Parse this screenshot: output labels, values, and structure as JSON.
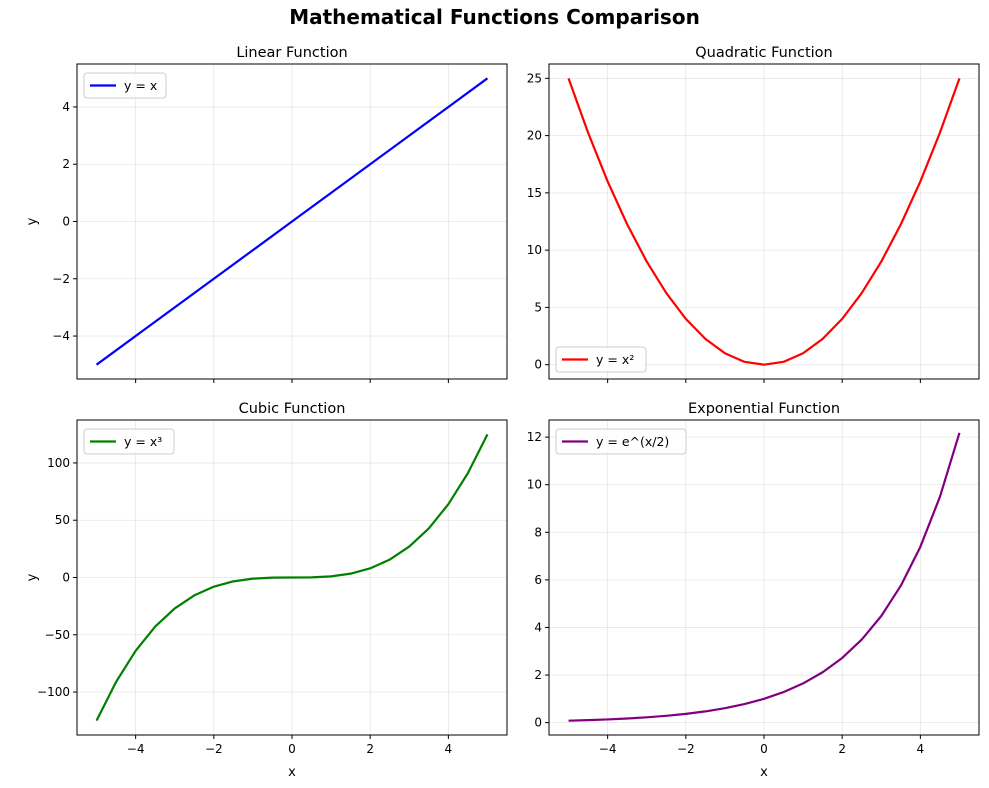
{
  "figure": {
    "title": "Mathematical Functions Comparison"
  },
  "chart_data": [
    {
      "type": "line",
      "title": "Linear Function",
      "xlabel": "",
      "ylabel": "y",
      "xlim": [
        -5.5,
        5.5
      ],
      "ylim": [
        -5.5,
        5.5
      ],
      "xticks": [
        -4,
        -2,
        0,
        2,
        4
      ],
      "xtick_labels": [
        "",
        "",
        "",
        "",
        ""
      ],
      "yticks": [
        -4,
        -2,
        0,
        2,
        4
      ],
      "ytick_labels": [
        "−4",
        "−2",
        "0",
        "2",
        "4"
      ],
      "grid": true,
      "legend_position": "top-left",
      "series": [
        {
          "name": "y = x",
          "color": "#0000ff",
          "x": [
            -5,
            -4,
            -3,
            -2,
            -1,
            0,
            1,
            2,
            3,
            4,
            5
          ],
          "y": [
            -5,
            -4,
            -3,
            -2,
            -1,
            0,
            1,
            2,
            3,
            4,
            5
          ]
        }
      ]
    },
    {
      "type": "line",
      "title": "Quadratic Function",
      "xlabel": "",
      "ylabel": "",
      "xlim": [
        -5.5,
        5.5
      ],
      "ylim": [
        -1.25,
        26.25
      ],
      "xticks": [
        -4,
        -2,
        0,
        2,
        4
      ],
      "xtick_labels": [
        "",
        "",
        "",
        "",
        ""
      ],
      "yticks": [
        0,
        5,
        10,
        15,
        20,
        25
      ],
      "ytick_labels": [
        "0",
        "5",
        "10",
        "15",
        "20",
        "25"
      ],
      "grid": true,
      "legend_position": "bottom-left",
      "series": [
        {
          "name": "y = x²",
          "color": "#ff0000",
          "x": [
            -5,
            -4.5,
            -4,
            -3.5,
            -3,
            -2.5,
            -2,
            -1.5,
            -1,
            -0.5,
            0,
            0.5,
            1,
            1.5,
            2,
            2.5,
            3,
            3.5,
            4,
            4.5,
            5
          ],
          "y": [
            25,
            20.25,
            16,
            12.25,
            9,
            6.25,
            4,
            2.25,
            1,
            0.25,
            0,
            0.25,
            1,
            2.25,
            4,
            6.25,
            9,
            12.25,
            16,
            20.25,
            25
          ]
        }
      ]
    },
    {
      "type": "line",
      "title": "Cubic Function",
      "xlabel": "x",
      "ylabel": "y",
      "xlim": [
        -5.5,
        5.5
      ],
      "ylim": [
        -137.5,
        137.5
      ],
      "xticks": [
        -4,
        -2,
        0,
        2,
        4
      ],
      "xtick_labels": [
        "−4",
        "−2",
        "0",
        "2",
        "4"
      ],
      "yticks": [
        -100,
        -50,
        0,
        50,
        100
      ],
      "ytick_labels": [
        "−100",
        "−50",
        "0",
        "50",
        "100"
      ],
      "grid": true,
      "legend_position": "top-left",
      "series": [
        {
          "name": "y = x³",
          "color": "#008000",
          "x": [
            -5,
            -4.5,
            -4,
            -3.5,
            -3,
            -2.5,
            -2,
            -1.5,
            -1,
            -0.5,
            0,
            0.5,
            1,
            1.5,
            2,
            2.5,
            3,
            3.5,
            4,
            4.5,
            5
          ],
          "y": [
            -125,
            -91.125,
            -64,
            -42.875,
            -27,
            -15.625,
            -8,
            -3.375,
            -1,
            -0.125,
            0,
            0.125,
            1,
            3.375,
            8,
            15.625,
            27,
            42.875,
            64,
            91.125,
            125
          ]
        }
      ]
    },
    {
      "type": "line",
      "title": "Exponential Function",
      "xlabel": "x",
      "ylabel": "",
      "xlim": [
        -5.5,
        5.5
      ],
      "ylim": [
        -0.52,
        12.72
      ],
      "xticks": [
        -4,
        -2,
        0,
        2,
        4
      ],
      "xtick_labels": [
        "−4",
        "−2",
        "0",
        "2",
        "4"
      ],
      "yticks": [
        0,
        2,
        4,
        6,
        8,
        10,
        12
      ],
      "ytick_labels": [
        "0",
        "2",
        "4",
        "6",
        "8",
        "10",
        "12"
      ],
      "grid": true,
      "legend_position": "top-left",
      "series": [
        {
          "name": "y = e^(x/2)",
          "color": "#800080",
          "x": [
            -5,
            -4.5,
            -4,
            -3.5,
            -3,
            -2.5,
            -2,
            -1.5,
            -1,
            -0.5,
            0,
            0.5,
            1,
            1.5,
            2,
            2.5,
            3,
            3.5,
            4,
            4.5,
            5
          ],
          "y": [
            0.082,
            0.105,
            0.135,
            0.174,
            0.223,
            0.287,
            0.368,
            0.472,
            0.607,
            0.779,
            1.0,
            1.284,
            1.649,
            2.117,
            2.718,
            3.49,
            4.482,
            5.755,
            7.389,
            9.488,
            12.182
          ]
        }
      ]
    }
  ]
}
